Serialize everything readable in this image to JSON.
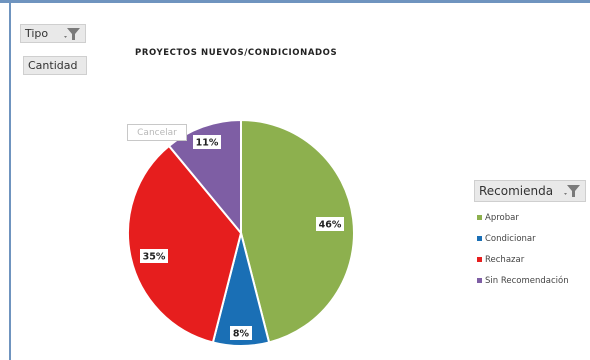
{
  "filters": {
    "tipo_label": "Tipo",
    "cantidad_label": "Cantidad",
    "recomienda_label": "Recomienda"
  },
  "tooltip": "Cancelar",
  "colors": {
    "aprobar": "#8db04e",
    "condicionar": "#1a6fb5",
    "rechazar": "#e61e1e",
    "sin_recomendacion": "#7e5ea4",
    "frame": "#6f94bf"
  },
  "icons": [
    "funnel-icon"
  ],
  "chart_data": {
    "type": "pie",
    "title": "PROYECTOS NUEVOS/CONDICIONADOS",
    "legend_title": "Recomienda",
    "legend_position": "right",
    "slices": [
      {
        "name": "Aprobar",
        "value": 46,
        "label": "46%",
        "color": "#8db04e"
      },
      {
        "name": "Condicionar",
        "value": 8,
        "label": "8%",
        "color": "#1a6fb5"
      },
      {
        "name": "Rechazar",
        "value": 35,
        "label": "35%",
        "color": "#e61e1e"
      },
      {
        "name": "Sin Recomendación",
        "value": 11,
        "label": "11%",
        "color": "#7e5ea4"
      }
    ]
  }
}
